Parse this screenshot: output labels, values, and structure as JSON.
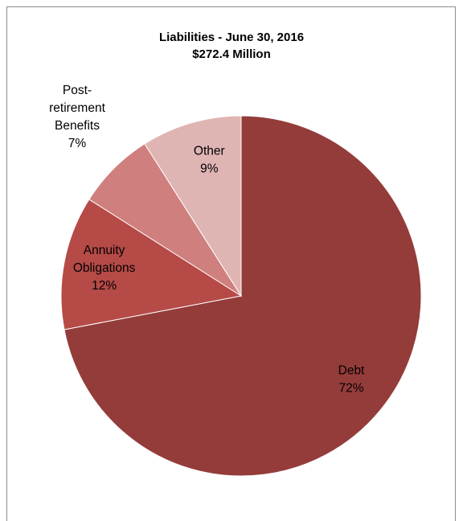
{
  "chart_data": {
    "type": "pie",
    "title": "Liabilities - June 30, 2016",
    "subtitle": "$272.4 Million",
    "slices": [
      {
        "label": [
          "Debt"
        ],
        "value": 72,
        "display": "72%",
        "color": "#943c3a"
      },
      {
        "label": [
          "Annuity",
          "Obligations"
        ],
        "value": 12,
        "display": "12%",
        "color": "#b54a47"
      },
      {
        "label": [
          "Post-",
          "retirement",
          "Benefits"
        ],
        "value": 7,
        "display": "7%",
        "color": "#cf7f7d"
      },
      {
        "label": [
          "Other"
        ],
        "value": 9,
        "display": "9%",
        "color": "#dfb5b4"
      }
    ],
    "start_angle_deg": 0,
    "direction": "clockwise",
    "legend": "none"
  }
}
